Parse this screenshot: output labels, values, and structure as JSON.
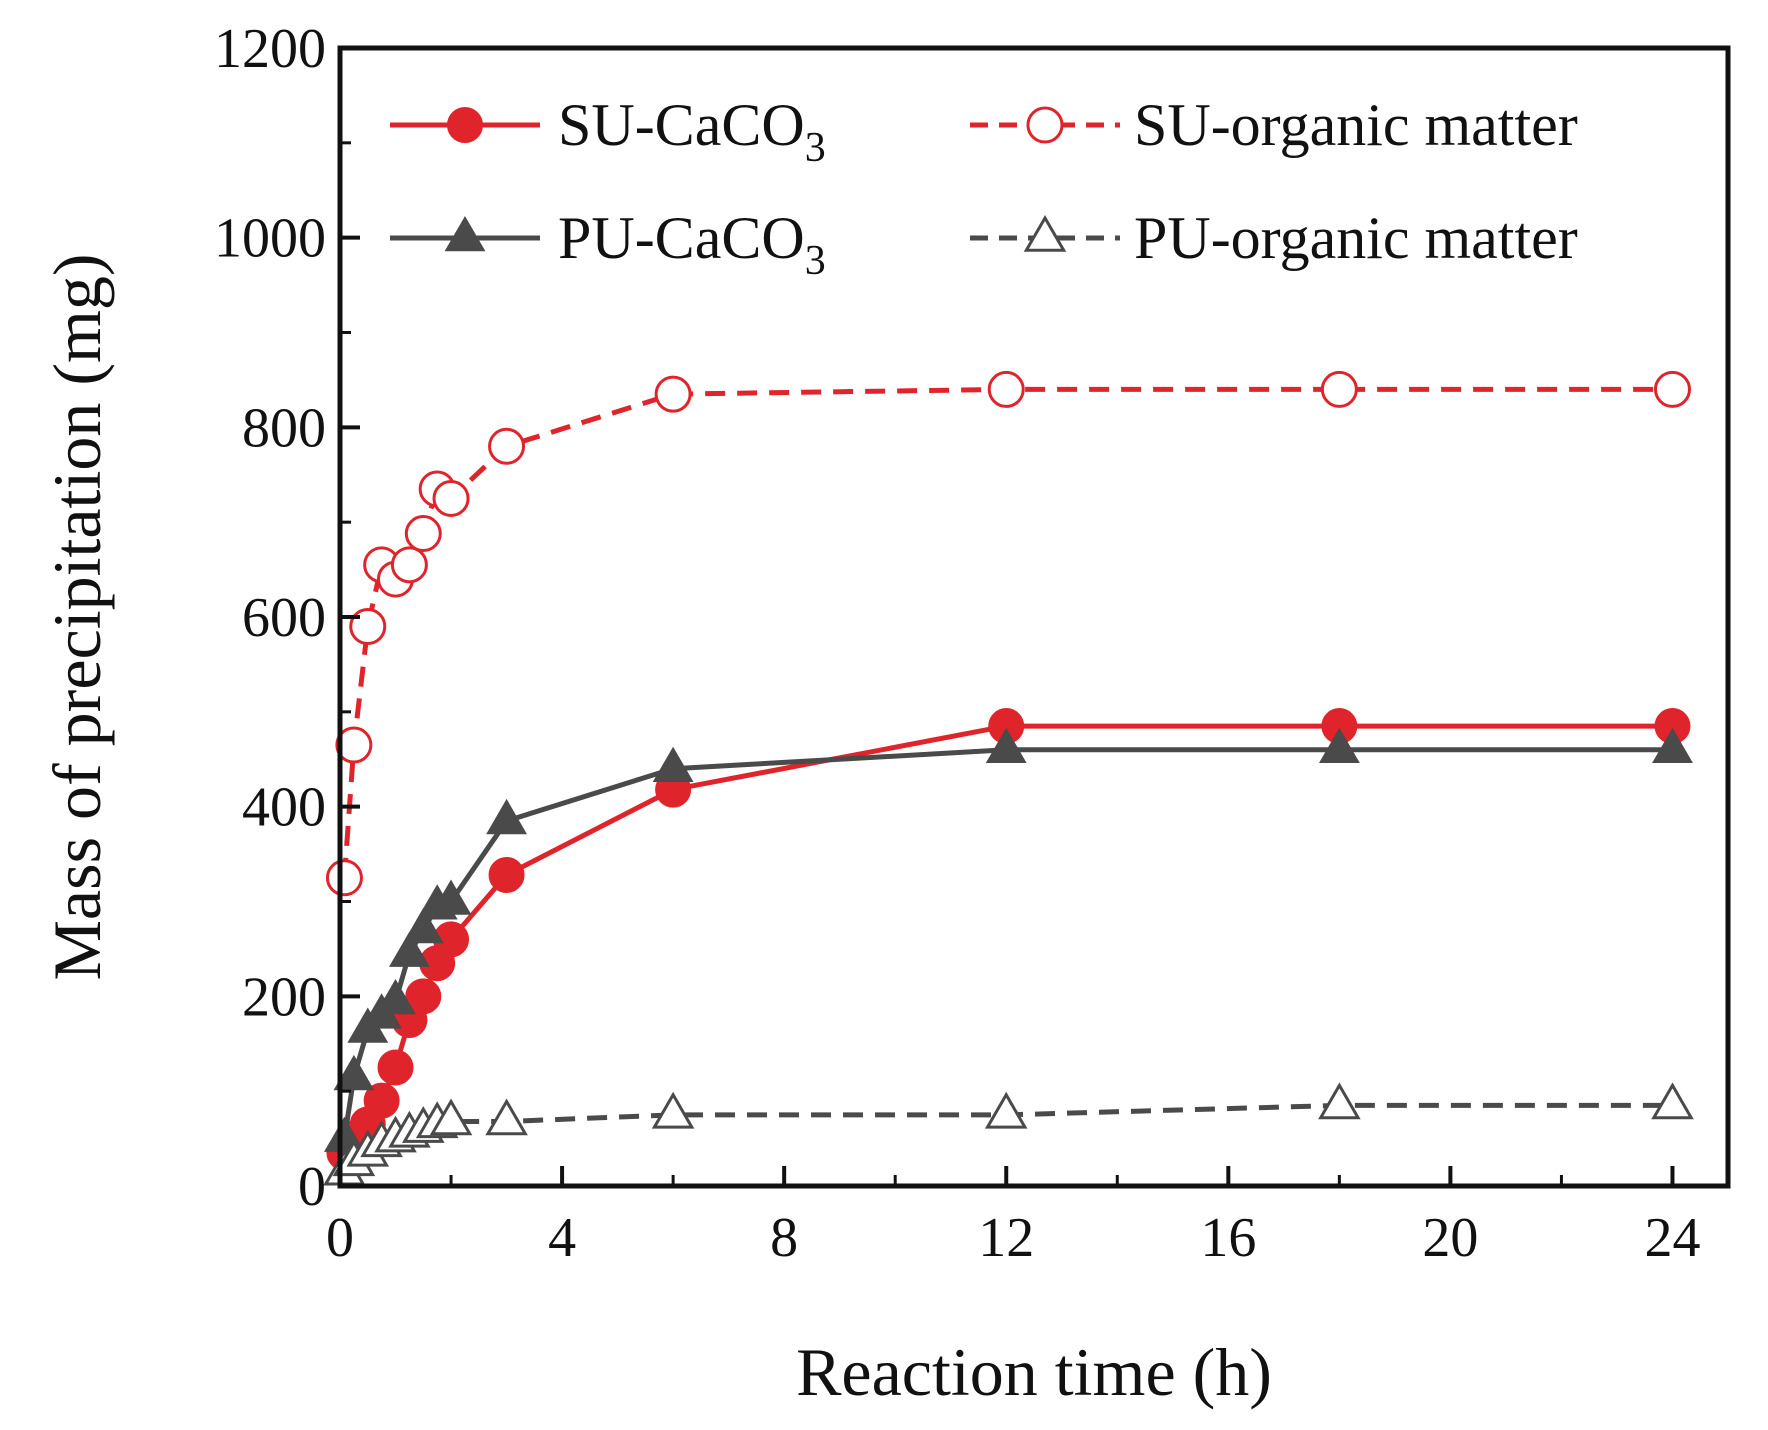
{
  "chart_data": {
    "type": "line",
    "title": "",
    "xlabel": "Reaction time (h)",
    "ylabel": "Mass of precipitation (mg)",
    "xlim": [
      0,
      25
    ],
    "ylim": [
      0,
      1200
    ],
    "xticks": [
      0,
      4,
      8,
      12,
      16,
      20,
      24
    ],
    "yticks": [
      0,
      200,
      400,
      600,
      800,
      1000,
      1200
    ],
    "grid": false,
    "legend_position": "top",
    "series": [
      {
        "name": "SU-CaCO3",
        "label_main": "SU-CaCO",
        "label_sub": "3",
        "color": "#e0242b",
        "line": "solid",
        "marker": "circle",
        "filled": true,
        "x": [
          0.08,
          0.25,
          0.5,
          0.75,
          1.0,
          1.25,
          1.5,
          1.75,
          2.0,
          3.0,
          6.0,
          12.0,
          18.0,
          24.0
        ],
        "y": [
          35,
          50,
          65,
          90,
          125,
          175,
          200,
          235,
          260,
          328,
          418,
          485,
          485,
          485
        ]
      },
      {
        "name": "SU-organic matter",
        "label_main": "SU-organic matter",
        "label_sub": "",
        "color": "#e0242b",
        "line": "dashed",
        "marker": "circle",
        "filled": false,
        "x": [
          0.08,
          0.25,
          0.5,
          0.75,
          1.0,
          1.25,
          1.5,
          1.75,
          2.0,
          3.0,
          6.0,
          12.0,
          18.0,
          24.0
        ],
        "y": [
          325,
          465,
          590,
          655,
          640,
          655,
          688,
          735,
          725,
          780,
          835,
          840,
          840,
          840
        ]
      },
      {
        "name": "PU-CaCO3",
        "label_main": "PU-CaCO",
        "label_sub": "3",
        "color": "#4a4a4a",
        "line": "solid",
        "marker": "triangle",
        "filled": true,
        "x": [
          0.08,
          0.25,
          0.5,
          0.75,
          1.0,
          1.25,
          1.5,
          1.75,
          2.0,
          3.0,
          6.0,
          12.0,
          18.0,
          24.0
        ],
        "y": [
          50,
          115,
          165,
          180,
          195,
          245,
          270,
          295,
          300,
          385,
          440,
          460,
          460,
          460
        ]
      },
      {
        "name": "PU-organic matter",
        "label_main": "PU-organic matter",
        "label_sub": "",
        "color": "#4a4a4a",
        "line": "dashed",
        "marker": "triangle",
        "filled": false,
        "x": [
          0.08,
          0.25,
          0.5,
          0.75,
          1.0,
          1.25,
          1.5,
          1.75,
          2.0,
          3.0,
          6.0,
          12.0,
          18.0,
          24.0
        ],
        "y": [
          15,
          25,
          35,
          45,
          50,
          55,
          60,
          65,
          68,
          68,
          75,
          75,
          85,
          85
        ]
      }
    ]
  }
}
